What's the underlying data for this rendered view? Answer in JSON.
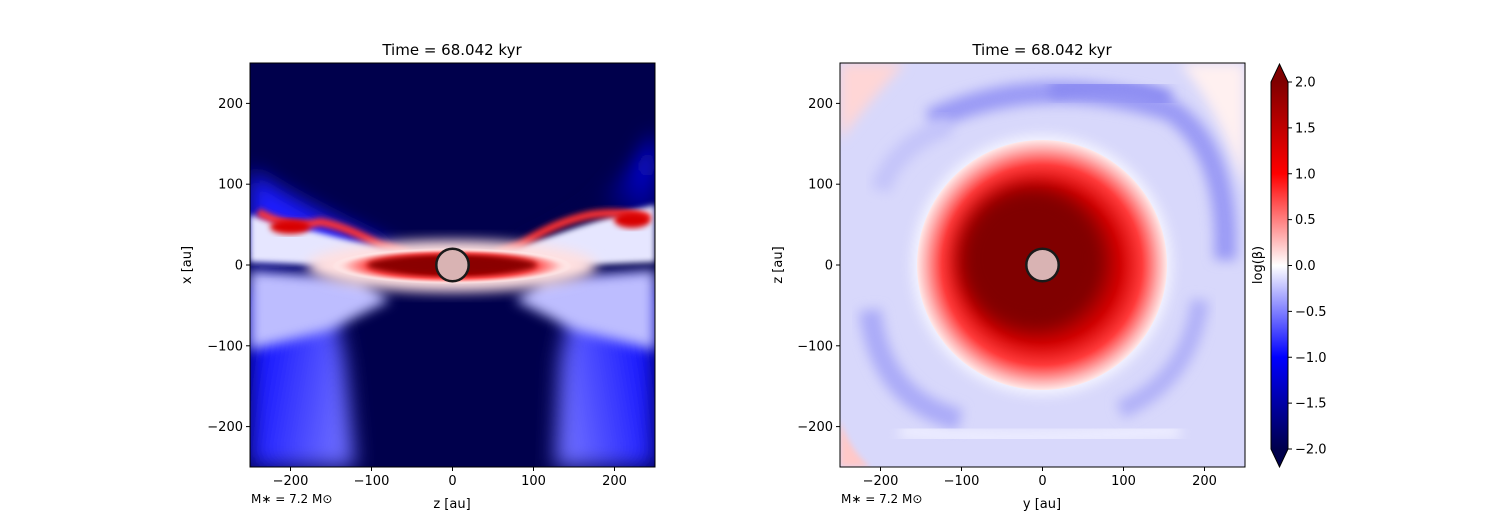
{
  "chart_data": [
    {
      "type": "heatmap",
      "title": "Time = 68.042 kyr",
      "xlabel": "z [au]",
      "ylabel": "x [au]",
      "xlim": [
        -250,
        250
      ],
      "ylim": [
        -250,
        250
      ],
      "xticks": [
        -200,
        -100,
        0,
        100,
        200
      ],
      "yticks": [
        -200,
        -100,
        0,
        100,
        200
      ],
      "annotation": "M$_*$ = 7.2 M$_\\odot$",
      "annotation_text": "M∗ = 7.2 M⊙",
      "view": "edge-on",
      "star_marker": {
        "x": 0,
        "y": 0,
        "radius": 20
      }
    },
    {
      "type": "heatmap",
      "title": "Time = 68.042 kyr",
      "xlabel": "y [au]",
      "ylabel": "z [au]",
      "xlim": [
        -250,
        250
      ],
      "ylim": [
        -250,
        250
      ],
      "xticks": [
        -200,
        -100,
        0,
        100,
        200
      ],
      "yticks": [
        -200,
        -100,
        0,
        100,
        200
      ],
      "annotation_text": "M∗ = 7.2 M⊙",
      "view": "face-on",
      "star_marker": {
        "x": 0,
        "y": 0,
        "radius": 20
      }
    }
  ],
  "colorbar": {
    "label": "log(β)",
    "range": [
      -2.0,
      2.0
    ],
    "ticks": [
      "−2.0",
      "−1.5",
      "−1.0",
      "−0.5",
      "0.0",
      "0.5",
      "1.0",
      "1.5",
      "2.0"
    ],
    "tick_values": [
      -2.0,
      -1.5,
      -1.0,
      -0.5,
      0.0,
      0.5,
      1.0,
      1.5,
      2.0
    ],
    "colormap": "seismic",
    "colors": {
      "low": "#00004c",
      "mid_low": "#0000ff",
      "mid": "#ffffff",
      "mid_high": "#ff0000",
      "high": "#800000"
    }
  },
  "star_color": "#d9b3b3"
}
